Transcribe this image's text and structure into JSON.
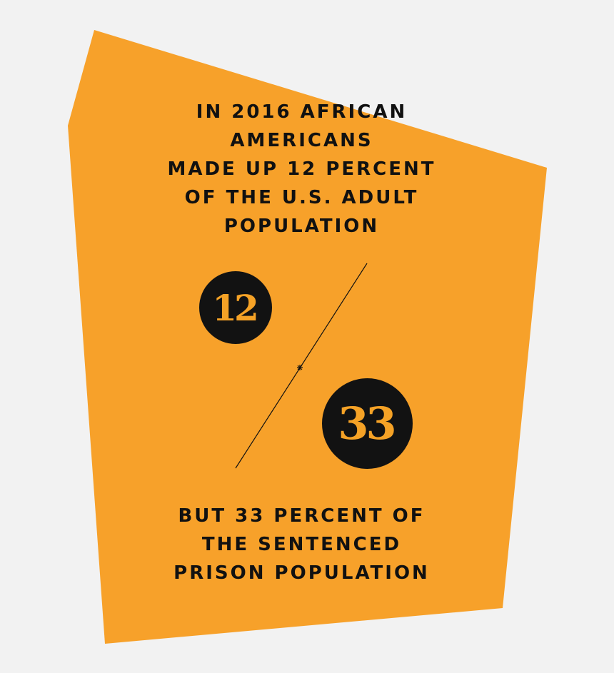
{
  "colors": {
    "background": "#f2f2f2",
    "shape_fill": "#f7a12a",
    "text": "#111111",
    "circle_fill": "#121212",
    "number_text": "#f5a226"
  },
  "headline": {
    "lines": [
      "IN 2016 AFRICAN",
      "AMERICANS",
      "MADE UP 12 PERCENT",
      "OF THE U.S. ADULT",
      "POPULATION"
    ]
  },
  "stat_small": {
    "value": "12"
  },
  "stat_large": {
    "value": "33"
  },
  "footer": {
    "lines": [
      "BUT 33 PERCENT OF",
      "THE SENTENCED",
      "PRISON POPULATION"
    ]
  }
}
